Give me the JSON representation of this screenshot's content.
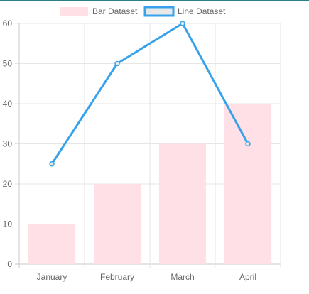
{
  "colors": {
    "bar_fill": "#ffe0e6",
    "line": "#36a2eb",
    "line_legend_fill": "#e8e8e8",
    "grid": "#e6e6e6",
    "text": "#666666"
  },
  "chart_data": {
    "type": "bar",
    "categories": [
      "January",
      "February",
      "March",
      "April"
    ],
    "series": [
      {
        "name": "Bar Dataset",
        "type": "bar",
        "values": [
          10,
          20,
          30,
          40
        ]
      },
      {
        "name": "Line Dataset",
        "type": "line",
        "values": [
          25,
          50,
          60,
          30
        ]
      }
    ],
    "y_ticks": [
      "0",
      "10",
      "20",
      "30",
      "40",
      "50",
      "60"
    ],
    "ylim": [
      0,
      60
    ],
    "grid": true,
    "legend_position": "top"
  }
}
